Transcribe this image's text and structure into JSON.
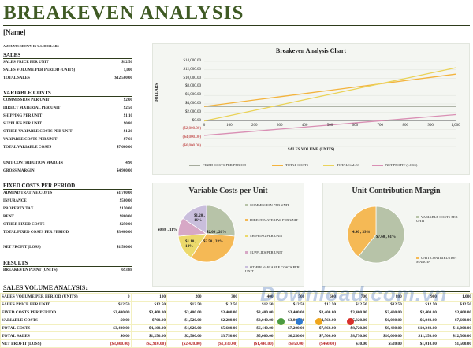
{
  "title": "BREAKEVEN ANALYSIS",
  "name_field": "[Name]",
  "note": "AMOUNTS SHOWN IN U.S. DOLLARS",
  "sales": {
    "heading": "SALES",
    "rows": [
      {
        "label": "SALES PRICE PER UNIT",
        "value": "$12.50"
      },
      {
        "label": "SALES VOLUME PER PERIOD (UNITS)",
        "value": "1,000"
      },
      {
        "label": "TOTAL SALES",
        "value": "$12,500.00"
      }
    ]
  },
  "variable_costs": {
    "heading": "VARIABLE COSTS",
    "rows": [
      {
        "label": "COMMISSION PER UNIT",
        "value": "$2.00"
      },
      {
        "label": "DIRECT MATERIAL PER UNIT",
        "value": "$2.50"
      },
      {
        "label": "SHIPPING PER UNIT",
        "value": "$1.10"
      },
      {
        "label": "SUPPLIES PER UNIT",
        "value": "$0.80"
      },
      {
        "label": "OTHER VARIABLE COSTS PER UNIT",
        "value": "$1.20"
      },
      {
        "label": "VARIABLE COSTS PER UNIT",
        "value": "$7.60"
      },
      {
        "label": "TOTAL VARIABLE COSTS",
        "value": "$7,600.00"
      }
    ],
    "extra": [
      {
        "label": "UNIT CONTRIBUTION MARGIN",
        "value": "4.90"
      },
      {
        "label": "GROSS MARGIN",
        "value": "$4,900.00"
      }
    ]
  },
  "fixed_costs": {
    "heading": "FIXED COSTS PER PERIOD",
    "rows": [
      {
        "label": "ADMINISTRATIVE COSTS",
        "value": "$1,700.00"
      },
      {
        "label": "INSURANCE",
        "value": "$500.00"
      },
      {
        "label": "PROPERTY TAX",
        "value": "$150.00"
      },
      {
        "label": "RENT",
        "value": "$800.00"
      },
      {
        "label": "OTHER FIXED COSTS",
        "value": "$250.00"
      },
      {
        "label": "TOTAL FIXED COSTS PER PERIOD",
        "value": "$3,400.00"
      }
    ],
    "net": {
      "label": "NET PROFIT (LOSS)",
      "value": "$1,500.00"
    }
  },
  "results": {
    "heading": "RESULTS",
    "row": {
      "label": "BREAKEVEN POINT (UNITS):",
      "value": "693.88"
    }
  },
  "colors": {
    "fixed": "#a5ab9c",
    "total_costs": "#f3b33d",
    "total_sales": "#ead35a",
    "net_profit": "#d98fb4",
    "title_green": "#3f5a24"
  },
  "chart_data": [
    {
      "type": "line",
      "title": "Breakeven Analysis Chart",
      "ylabel": "DOLLARS",
      "xlabel": "SALES VOLUME (UNITS)",
      "x": [
        0,
        100,
        200,
        300,
        400,
        500,
        600,
        700,
        800,
        900,
        1000
      ],
      "ylim": [
        -6000,
        14000
      ],
      "yticks": [
        "$14,000.00",
        "$12,000.00",
        "$10,000.00",
        "$8,000.00",
        "$6,000.00",
        "$4,000.00",
        "$2,000.00",
        "$0.00",
        "($2,000.00)",
        "($4,000.00)",
        "($6,000.00)"
      ],
      "ytick_values": [
        14000,
        12000,
        10000,
        8000,
        6000,
        4000,
        2000,
        0,
        -2000,
        -4000,
        -6000
      ],
      "series": [
        {
          "name": "FIXED COSTS PER PERIOD",
          "values": [
            3400,
            3400,
            3400,
            3400,
            3400,
            3400,
            3400,
            3400,
            3400,
            3400,
            3400
          ]
        },
        {
          "name": "TOTAL COSTS",
          "values": [
            3400,
            4160,
            4920,
            5680,
            6440,
            7200,
            7960,
            8720,
            9480,
            10240,
            11000
          ]
        },
        {
          "name": "TOTAL SALES",
          "values": [
            0,
            1250,
            2500,
            3750,
            5000,
            6250,
            7500,
            8750,
            10000,
            11250,
            12500
          ]
        },
        {
          "name": "NET PROFIT (LOSS)",
          "values": [
            -3400,
            -2910,
            -2420,
            -1930,
            -1440,
            -950,
            -460,
            30,
            520,
            1010,
            1500
          ]
        }
      ]
    },
    {
      "type": "pie",
      "title": "Variable Costs per Unit",
      "categories": [
        "COMMISSION PER UNIT",
        "DIRECT MATERIAL PER UNIT",
        "SHIPPING PER UNIT",
        "SUPPLIES PER UNIT",
        "OTHER VARIABLE COSTS PER UNIT"
      ],
      "values": [
        2.0,
        2.5,
        1.1,
        0.8,
        1.2
      ],
      "data_labels": [
        "$2.00 , 26%",
        "$2.50 , 33%",
        "$1.10 , 14%",
        "$0.80 , 11%",
        "$1.20 , 16%"
      ]
    },
    {
      "type": "pie",
      "title": "Unit Contribution Margin",
      "categories": [
        "VARIABLE COSTS PER UNIT",
        "UNIT CONTRIBUTION MARGIN"
      ],
      "values": [
        7.6,
        4.9
      ],
      "data_labels": [
        "$7.60 , 61%",
        "4.90 , 39%"
      ]
    }
  ],
  "pie_colors_1": [
    "#b7c3a8",
    "#f5b955",
    "#ecd96b",
    "#d7a8c6",
    "#c9bedc"
  ],
  "pie_colors_2": [
    "#b7c3a8",
    "#f5b955"
  ],
  "sales_volume_analysis": {
    "heading": "SALES VOLUME ANALYSIS:",
    "rows": [
      {
        "label": "SALES VOLUME PER PERIOD (UNITS)",
        "cells": [
          "0",
          "100",
          "200",
          "300",
          "400",
          "500",
          "600",
          "700",
          "800",
          "900",
          "1,000"
        ]
      },
      {
        "label": "SALES PRICE PER UNIT",
        "cells": [
          "$12.50",
          "$12.50",
          "$12.50",
          "$12.50",
          "$12.50",
          "$12.50",
          "$12.50",
          "$12.50",
          "$12.50",
          "$12.50",
          "$12.50"
        ]
      },
      {
        "label": "FIXED COSTS PER PERIOD",
        "cells": [
          "$3,400.00",
          "$3,400.00",
          "$3,400.00",
          "$3,400.00",
          "$3,400.00",
          "$3,400.00",
          "$3,400.00",
          "$3,400.00",
          "$3,400.00",
          "$3,400.00",
          "$3,400.00"
        ]
      },
      {
        "label": "VARIABLE COSTS",
        "cells": [
          "$0.00",
          "$760.00",
          "$1,520.00",
          "$2,280.00",
          "$3,040.00",
          "$3,800.00",
          "$4,560.00",
          "$5,320.00",
          "$6,080.00",
          "$6,840.00",
          "$7,600.00"
        ]
      },
      {
        "label": "TOTAL COSTS",
        "cells": [
          "$3,400.00",
          "$4,160.00",
          "$4,920.00",
          "$5,680.00",
          "$6,440.00",
          "$7,200.00",
          "$7,960.00",
          "$8,720.00",
          "$9,480.00",
          "$10,240.00",
          "$11,000.00"
        ]
      },
      {
        "label": "TOTAL SALES",
        "cells": [
          "$0.00",
          "$1,250.00",
          "$2,500.00",
          "$3,750.00",
          "$5,000.00",
          "$6,250.00",
          "$7,500.00",
          "$8,750.00",
          "$10,000.00",
          "$11,250.00",
          "$12,500.00"
        ]
      },
      {
        "label": "NET PROFIT (LOSS)",
        "cells": [
          "($3,400.00)",
          "($2,910.00)",
          "($2,420.00)",
          "($1,930.00)",
          "($1,440.00)",
          "($950.00)",
          "($460.00)",
          "$30.00",
          "$520.00",
          "$1,010.00",
          "$1,500.00"
        ]
      }
    ]
  },
  "watermark": "Download.com.vn"
}
